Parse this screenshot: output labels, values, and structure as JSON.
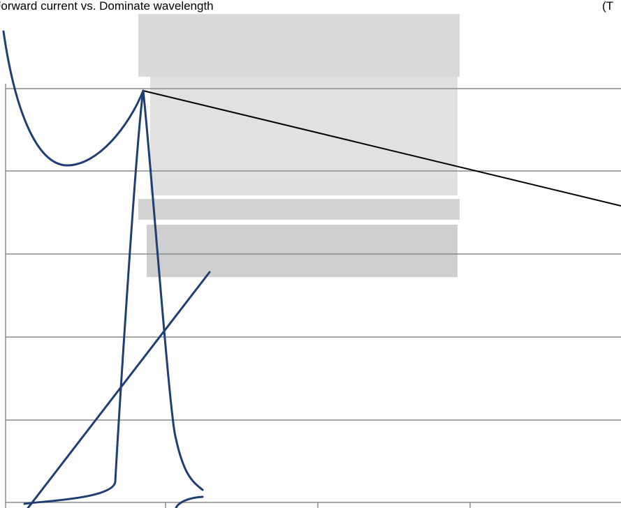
{
  "header": {
    "title": "Forward current vs. Dominate wavelength",
    "condition": "(T"
  }
}
